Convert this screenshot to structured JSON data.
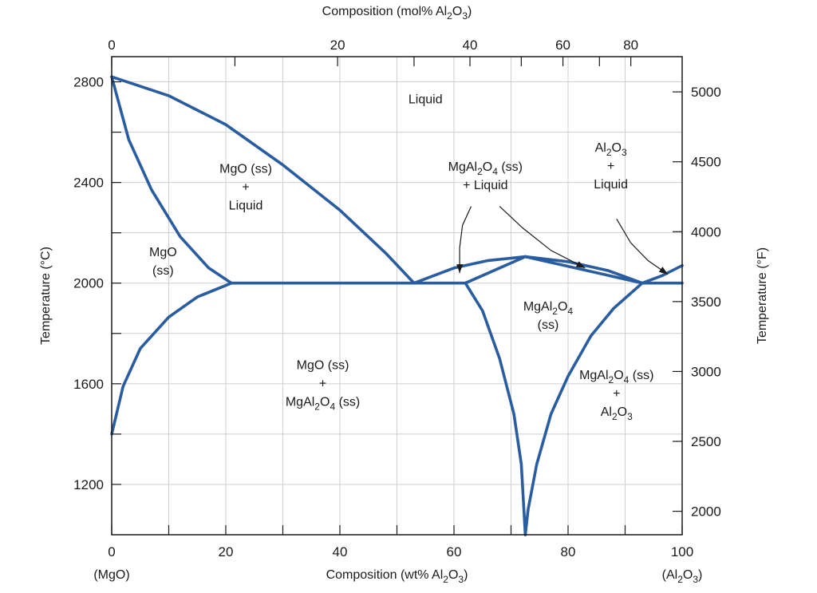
{
  "chart_data": {
    "type": "phase-diagram",
    "title": "",
    "colors": {
      "curve": "#2a5d9f",
      "grid": "#cfcfcf",
      "axis": "#1a1a1a"
    },
    "x_bottom": {
      "label": [
        "Composition (wt% Al",
        "2",
        "O",
        "3",
        ")"
      ],
      "range": [
        0,
        100
      ],
      "ticks": [
        0,
        20,
        40,
        60,
        80,
        100
      ],
      "minor_ticks": [
        10,
        30,
        50,
        70,
        90
      ],
      "end_labels": {
        "left": "(MgO)",
        "right": [
          "(Al",
          "2",
          "O",
          "3",
          ")"
        ]
      }
    },
    "x_top": {
      "label": [
        "Composition (mol% Al",
        "2",
        "O",
        "3",
        ")"
      ],
      "ticks": [
        {
          "label": "0",
          "wt": 0
        },
        {
          "label": "20",
          "wt": 39.6
        },
        {
          "label": "40",
          "wt": 62.8
        },
        {
          "label": "60",
          "wt": 79.1
        },
        {
          "label": "80",
          "wt": 91.0
        }
      ],
      "minor_ticks_wt": [
        21.6,
        53.0,
        71.8,
        85.5
      ]
    },
    "y_left": {
      "label": "Temperature (°C)",
      "range": [
        1000,
        2900
      ],
      "ticks": [
        1200,
        1600,
        2000,
        2400,
        2800
      ],
      "minor_ticks": [
        1400,
        1800,
        2200,
        2600
      ]
    },
    "y_right": {
      "label": "Temperature (°F)",
      "ticks": [
        2000,
        2500,
        3000,
        3500,
        4000,
        4500,
        5000
      ]
    },
    "curves": [
      {
        "name": "liquidus-mgo",
        "points": [
          [
            0,
            2820
          ],
          [
            10,
            2745
          ],
          [
            20,
            2630
          ],
          [
            30,
            2470
          ],
          [
            40,
            2290
          ],
          [
            48,
            2120
          ],
          [
            53,
            2000
          ]
        ]
      },
      {
        "name": "solidus-mgo",
        "points": [
          [
            0,
            2820
          ],
          [
            3,
            2570
          ],
          [
            7,
            2370
          ],
          [
            12,
            2185
          ],
          [
            17,
            2060
          ],
          [
            21,
            2000
          ]
        ]
      },
      {
        "name": "solvus-mgo",
        "points": [
          [
            0,
            1400
          ],
          [
            2,
            1590
          ],
          [
            5,
            1740
          ],
          [
            10,
            1865
          ],
          [
            15,
            1945
          ],
          [
            21,
            2000
          ]
        ]
      },
      {
        "name": "eutectic-left",
        "points": [
          [
            21,
            2000
          ],
          [
            53,
            2000
          ]
        ]
      },
      {
        "name": "liquidus-spinel-left",
        "points": [
          [
            53,
            2000
          ],
          [
            60,
            2060
          ],
          [
            66,
            2090
          ],
          [
            72.5,
            2105
          ]
        ]
      },
      {
        "name": "liquidus-spinel-right",
        "points": [
          [
            72.5,
            2105
          ],
          [
            80,
            2085
          ],
          [
            87,
            2050
          ],
          [
            93,
            2000
          ]
        ]
      },
      {
        "name": "solidus-spinel-left",
        "points": [
          [
            62,
            2000
          ],
          [
            72.5,
            2105
          ]
        ]
      },
      {
        "name": "solidus-spinel-right",
        "points": [
          [
            72.5,
            2105
          ],
          [
            93,
            2000
          ]
        ]
      },
      {
        "name": "eutectic-right",
        "points": [
          [
            53,
            2000
          ],
          [
            62,
            2000
          ]
        ]
      },
      {
        "name": "eutectic-right2",
        "points": [
          [
            93,
            2000
          ],
          [
            100,
            2000
          ]
        ]
      },
      {
        "name": "spinel-solvus-left",
        "points": [
          [
            62,
            2000
          ],
          [
            65,
            1890
          ],
          [
            68,
            1700
          ],
          [
            70.5,
            1480
          ],
          [
            71.8,
            1280
          ],
          [
            72.5,
            1000
          ]
        ]
      },
      {
        "name": "spinel-solvus-right",
        "points": [
          [
            93,
            2000
          ],
          [
            88,
            1900
          ],
          [
            84,
            1790
          ],
          [
            80,
            1630
          ],
          [
            77,
            1480
          ],
          [
            74.5,
            1280
          ],
          [
            73,
            1100
          ],
          [
            72.5,
            1000
          ]
        ]
      },
      {
        "name": "liquidus-al2o3",
        "points": [
          [
            93,
            2000
          ],
          [
            96.5,
            2030
          ],
          [
            100,
            2070
          ]
        ]
      }
    ],
    "pointers": [
      {
        "name": "pointer-spinel-liquid-left",
        "points": [
          [
            63,
            2305
          ],
          [
            61.5,
            2230
          ],
          [
            61,
            2140
          ],
          [
            61,
            2040
          ]
        ]
      },
      {
        "name": "pointer-spinel-liquid-right",
        "points": [
          [
            68,
            2305
          ],
          [
            72,
            2220
          ],
          [
            77,
            2130
          ],
          [
            83,
            2060
          ]
        ]
      },
      {
        "name": "pointer-al2o3-liquid",
        "points": [
          [
            88.5,
            2255
          ],
          [
            91,
            2160
          ],
          [
            94,
            2090
          ],
          [
            97.5,
            2035
          ]
        ]
      }
    ],
    "regions": [
      {
        "name": "liquid",
        "x": 55,
        "y": 2715,
        "lines": [
          [
            {
              "t": "Liquid"
            }
          ]
        ]
      },
      {
        "name": "mgo-ss-liquid",
        "x": 23.5,
        "y": 2365,
        "lines": [
          [
            {
              "t": "MgO (ss)"
            }
          ],
          [
            {
              "t": "+"
            }
          ],
          [
            {
              "t": "Liquid"
            }
          ]
        ]
      },
      {
        "name": "mgo-ss",
        "x": 9,
        "y": 2070,
        "lines": [
          [
            {
              "t": "MgO"
            }
          ],
          [
            {
              "t": "(ss)"
            }
          ]
        ]
      },
      {
        "name": "spinel-ss-liquid",
        "x": 65.5,
        "y": 2410,
        "lines": [
          [
            {
              "t": "MgAl"
            },
            {
              "t": "2",
              "s": 1
            },
            {
              "t": "O"
            },
            {
              "t": "4",
              "s": 1
            },
            {
              "t": " (ss)"
            }
          ],
          [
            {
              "t": "+ Liquid"
            }
          ]
        ]
      },
      {
        "name": "al2o3-liquid",
        "x": 87.5,
        "y": 2450,
        "lines": [
          [
            {
              "t": "Al"
            },
            {
              "t": "2",
              "s": 1
            },
            {
              "t": "O"
            },
            {
              "t": "3",
              "s": 1
            }
          ],
          [
            {
              "t": "+"
            }
          ],
          [
            {
              "t": "Liquid"
            }
          ]
        ]
      },
      {
        "name": "spinel-ss",
        "x": 76.5,
        "y": 1855,
        "lines": [
          [
            {
              "t": "MgAl"
            },
            {
              "t": "2",
              "s": 1
            },
            {
              "t": "O"
            },
            {
              "t": "4",
              "s": 1
            }
          ],
          [
            {
              "t": "(ss)"
            }
          ]
        ]
      },
      {
        "name": "mgo-ss-spinel-ss",
        "x": 37,
        "y": 1585,
        "lines": [
          [
            {
              "t": "MgO (ss)"
            }
          ],
          [
            {
              "t": "+"
            }
          ],
          [
            {
              "t": "MgAl"
            },
            {
              "t": "2",
              "s": 1
            },
            {
              "t": "O"
            },
            {
              "t": "4",
              "s": 1
            },
            {
              "t": " (ss)"
            }
          ]
        ]
      },
      {
        "name": "spinel-ss-al2o3",
        "x": 88.5,
        "y": 1545,
        "lines": [
          [
            {
              "t": "MgAl"
            },
            {
              "t": "2",
              "s": 1
            },
            {
              "t": "O"
            },
            {
              "t": "4",
              "s": 1
            },
            {
              "t": " (ss)"
            }
          ],
          [
            {
              "t": "+"
            }
          ],
          [
            {
              "t": "Al"
            },
            {
              "t": "2",
              "s": 1
            },
            {
              "t": "O"
            },
            {
              "t": "3",
              "s": 1
            }
          ]
        ]
      }
    ]
  }
}
